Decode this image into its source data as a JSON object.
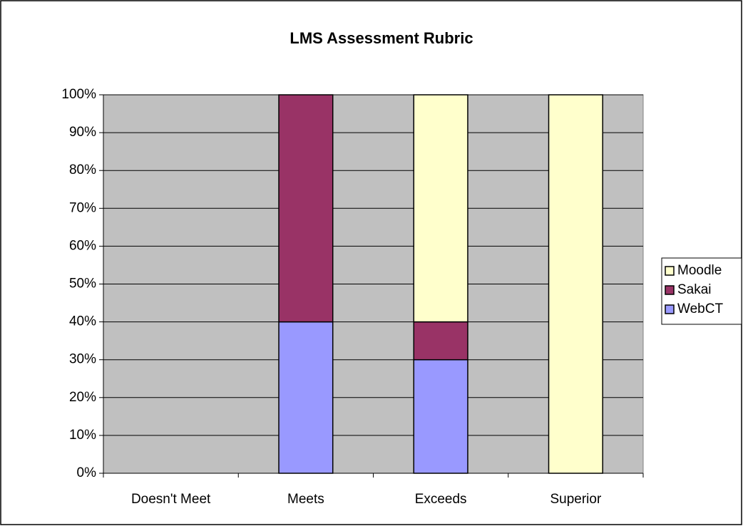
{
  "chart_data": {
    "type": "bar",
    "stacked": true,
    "title": "LMS Assessment Rubric",
    "categories": [
      "Doesn't Meet",
      "Meets",
      "Exceeds",
      "Superior"
    ],
    "series": [
      {
        "name": "WebCT",
        "color": "#9999ff",
        "values": [
          0,
          40,
          30,
          0
        ]
      },
      {
        "name": "Sakai",
        "color": "#993366",
        "values": [
          0,
          60,
          10,
          0
        ]
      },
      {
        "name": "Moodle",
        "color": "#ffffcc",
        "values": [
          0,
          0,
          60,
          100
        ]
      }
    ],
    "ylim": [
      0,
      100
    ],
    "yticks": [
      {
        "value": 0,
        "label": "0%"
      },
      {
        "value": 10,
        "label": "10%"
      },
      {
        "value": 20,
        "label": "20%"
      },
      {
        "value": 30,
        "label": "30%"
      },
      {
        "value": 40,
        "label": "40%"
      },
      {
        "value": 50,
        "label": "50%"
      },
      {
        "value": 60,
        "label": "60%"
      },
      {
        "value": 70,
        "label": "70%"
      },
      {
        "value": 80,
        "label": "80%"
      },
      {
        "value": 90,
        "label": "90%"
      },
      {
        "value": 100,
        "label": "100%"
      }
    ],
    "grid": true,
    "plot_background": "#c0c0c0",
    "legend": "right"
  }
}
